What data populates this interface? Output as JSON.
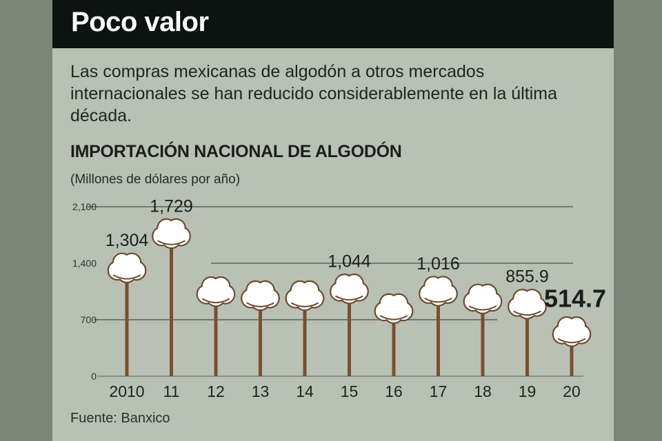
{
  "header": {
    "title": "Poco valor"
  },
  "subtitle": "Las compras mexicanas de algodón a otros mercados internacionales se han reducido considerablemente en la última década.",
  "source": "Fuente: Banxico",
  "colors": {
    "background": "#b9c1b5",
    "header": "#0c1310",
    "stem": "#7a4f2e",
    "boll": "#ffffff",
    "boll_outline": "#6b4a2d"
  },
  "chart_data": {
    "type": "bar",
    "title": "IMPORTACIÓN NACIONAL DE ALGODÓN",
    "ylabel": "(Millones de dólares por año)",
    "categories": [
      "2010",
      "11",
      "12",
      "13",
      "14",
      "15",
      "16",
      "17",
      "18",
      "19",
      "20"
    ],
    "values": [
      1304,
      1729,
      1010,
      960,
      960,
      1044,
      800,
      1016,
      920,
      855.9,
      514.7
    ],
    "data_labels": [
      "1,304",
      "1,729",
      "",
      "",
      "",
      "1,044",
      "",
      "1,016",
      "",
      "855.9",
      "514.7"
    ],
    "yticks": [
      0,
      700,
      1400,
      2100
    ],
    "ytick_labels": [
      "0",
      "700",
      "1,400",
      "2,100"
    ],
    "ylim": [
      0,
      2100
    ],
    "grid": true
  }
}
